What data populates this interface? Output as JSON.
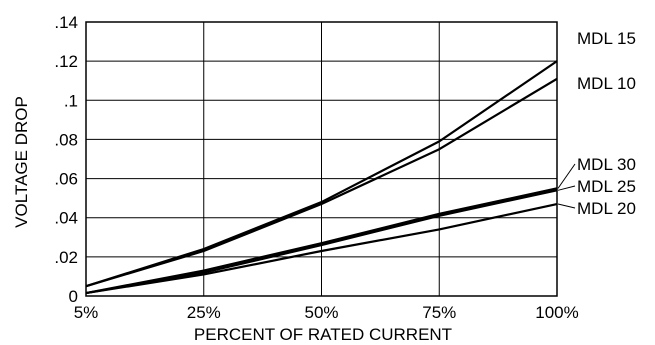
{
  "chart_data": {
    "type": "line",
    "xlabel": "PERCENT OF RATED CURRENT",
    "ylabel": "VOLTAGE DROP",
    "x": [
      "5%",
      "25%",
      "50%",
      "75%",
      "100%"
    ],
    "x_values": [
      5,
      25,
      50,
      75,
      100
    ],
    "xlim": [
      5,
      100
    ],
    "ylim": [
      0,
      0.14
    ],
    "yticks": [
      0,
      0.02,
      0.04,
      0.06,
      0.08,
      0.1,
      0.12,
      0.14
    ],
    "ytick_labels": [
      "0",
      ".02",
      ".04",
      ".06",
      ".08",
      ".1",
      ".12",
      ".14"
    ],
    "grid": true,
    "legend": "right, labels beside line ends",
    "series": [
      {
        "name": "MDL 15",
        "values": [
          0.005,
          0.024,
          0.048,
          0.079,
          0.12
        ]
      },
      {
        "name": "MDL 10",
        "values": [
          0.005,
          0.023,
          0.047,
          0.075,
          0.111
        ]
      },
      {
        "name": "MDL 30",
        "values": [
          0.0015,
          0.013,
          0.027,
          0.042,
          0.055
        ]
      },
      {
        "name": "MDL 25",
        "values": [
          0.0015,
          0.012,
          0.026,
          0.041,
          0.054
        ]
      },
      {
        "name": "MDL 20",
        "values": [
          0.0015,
          0.011,
          0.023,
          0.034,
          0.047
        ]
      }
    ]
  }
}
